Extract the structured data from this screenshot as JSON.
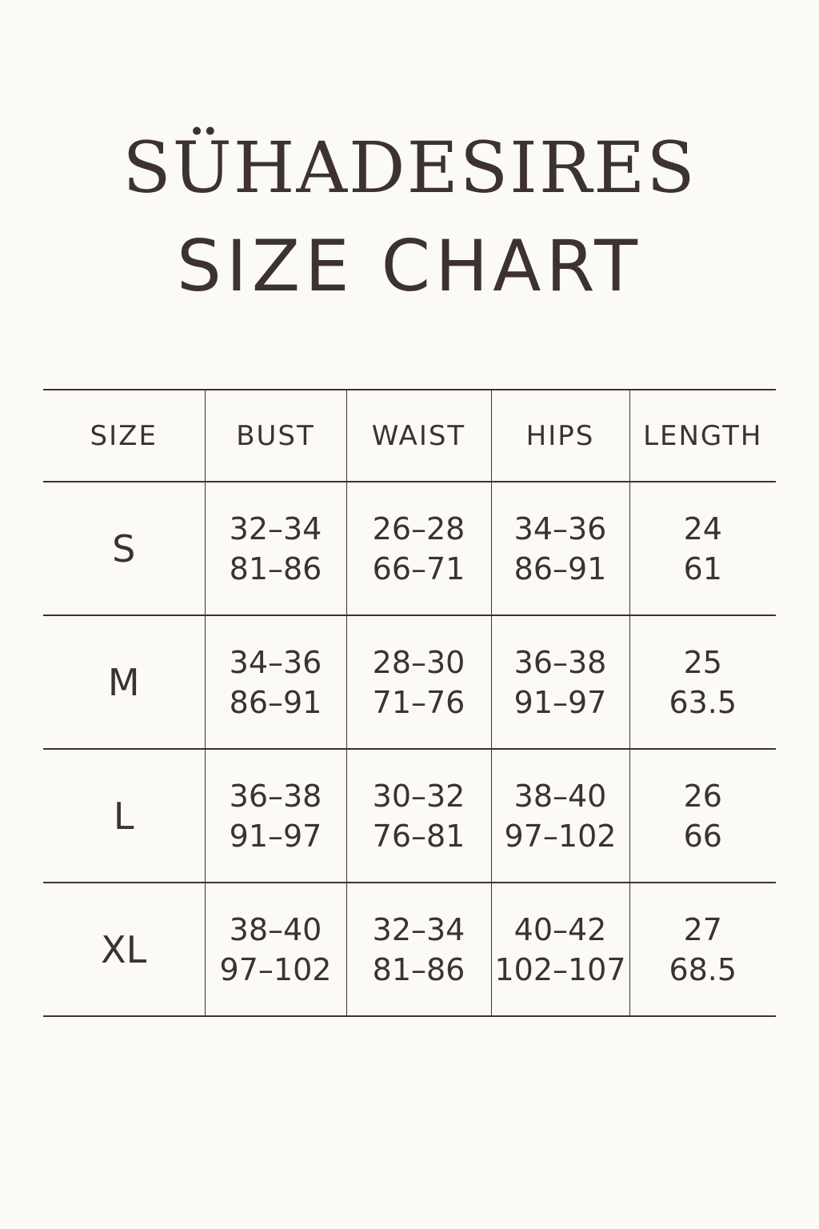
{
  "brand": "SÜHADESIRES",
  "subtitle": "SIZE CHART",
  "colors": {
    "text": "#3d322d",
    "background": "#fcfaf6"
  },
  "table": {
    "headers": [
      "SIZE",
      "BUST",
      "WAIST",
      "HIPS",
      "LENGTH"
    ],
    "rows": [
      {
        "size": "S",
        "bust": [
          "32–34",
          "81–86"
        ],
        "waist": [
          "26–28",
          "66–71"
        ],
        "hips": [
          "34–36",
          "86–91"
        ],
        "length": [
          "24",
          "61"
        ]
      },
      {
        "size": "M",
        "bust": [
          "34–36",
          "86–91"
        ],
        "waist": [
          "28–30",
          "71–76"
        ],
        "hips": [
          "36–38",
          "91–97"
        ],
        "length": [
          "25",
          "63.5"
        ]
      },
      {
        "size": "L",
        "bust": [
          "36–38",
          "91–97"
        ],
        "waist": [
          "30–32",
          "76–81"
        ],
        "hips": [
          "38–40",
          "97–102"
        ],
        "length": [
          "26",
          "66"
        ]
      },
      {
        "size": "XL",
        "bust": [
          "38–40",
          "97–102"
        ],
        "waist": [
          "32–34",
          "81–86"
        ],
        "hips": [
          "40–42",
          "102–107"
        ],
        "length": [
          "27",
          "68.5"
        ]
      }
    ]
  }
}
